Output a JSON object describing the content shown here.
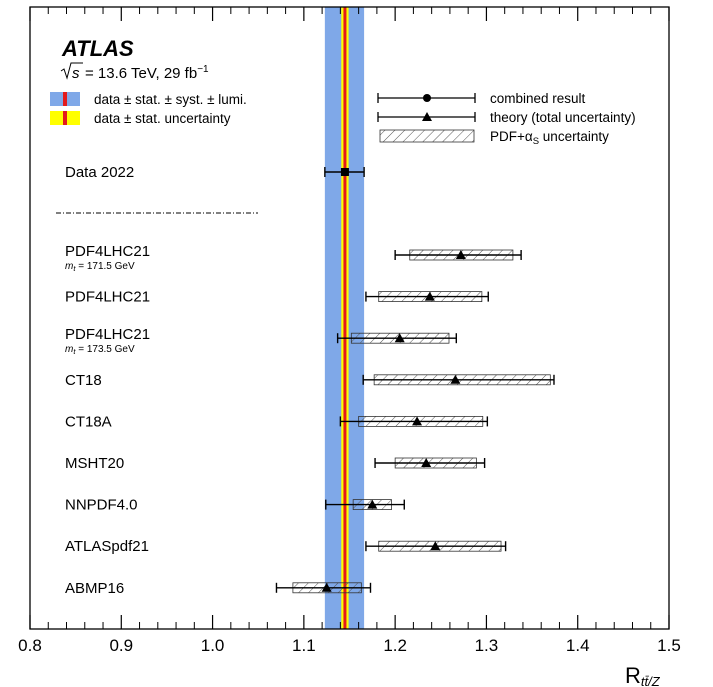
{
  "chart_data": {
    "type": "forest",
    "experiment": "ATLAS",
    "energy_text": "= 13.6 TeV, 29 fb",
    "energy_prefix": "s",
    "lumi_exponent": "−1",
    "xlabel_main": "R",
    "xlabel_sub": "tt̄/Z",
    "xlim": [
      0.8,
      1.5
    ],
    "x_ticks": [
      0.8,
      0.9,
      1.0,
      1.1,
      1.2,
      1.3,
      1.4,
      1.5
    ],
    "x_tick_labels": [
      "0.8",
      "0.9",
      "1.0",
      "1.1",
      "1.2",
      "1.3",
      "1.4",
      "1.5"
    ],
    "data_band": {
      "central": 1.145,
      "total_low": 1.123,
      "total_high": 1.166,
      "stat_low": 1.141,
      "stat_high": 1.149,
      "colors": {
        "total": "#7fa8e8",
        "stat": "#ffff00",
        "central": "#e31a1c"
      }
    },
    "legend_left": [
      {
        "key": "total",
        "label": "data ± stat. ± syst. ± lumi."
      },
      {
        "key": "stat",
        "label": "data ± stat. uncertainty"
      }
    ],
    "legend_right": [
      {
        "key": "combined",
        "label": "combined result"
      },
      {
        "key": "theory",
        "label": "theory (total uncertainty)"
      },
      {
        "key": "pdf",
        "label": "PDF+α",
        "sub": "S",
        "suffix": " uncertainty"
      }
    ],
    "data_point": {
      "label": "Data 2022",
      "value": 1.145,
      "low": 1.123,
      "high": 1.166
    },
    "predictions": [
      {
        "label": "PDF4LHC21",
        "sublabel": "m_t = 171.5 GeV",
        "value": 1.272,
        "err_low": 1.2,
        "err_high": 1.338,
        "pdf_low": 1.216,
        "pdf_high": 1.329
      },
      {
        "label": "PDF4LHC21",
        "sublabel": "",
        "value": 1.238,
        "err_low": 1.168,
        "err_high": 1.302,
        "pdf_low": 1.182,
        "pdf_high": 1.295
      },
      {
        "label": "PDF4LHC21",
        "sublabel": "m_t = 173.5 GeV",
        "value": 1.205,
        "err_low": 1.137,
        "err_high": 1.267,
        "pdf_low": 1.152,
        "pdf_high": 1.259
      },
      {
        "label": "CT18",
        "sublabel": "",
        "value": 1.266,
        "err_low": 1.165,
        "err_high": 1.374,
        "pdf_low": 1.177,
        "pdf_high": 1.37
      },
      {
        "label": "CT18A",
        "sublabel": "",
        "value": 1.224,
        "err_low": 1.14,
        "err_high": 1.301,
        "pdf_low": 1.16,
        "pdf_high": 1.296
      },
      {
        "label": "MSHT20",
        "sublabel": "",
        "value": 1.234,
        "err_low": 1.178,
        "err_high": 1.298,
        "pdf_low": 1.2,
        "pdf_high": 1.289
      },
      {
        "label": "NNPDF4.0",
        "sublabel": "",
        "value": 1.175,
        "err_low": 1.124,
        "err_high": 1.21,
        "pdf_low": 1.154,
        "pdf_high": 1.196
      },
      {
        "label": "ATLASpdf21",
        "sublabel": "",
        "value": 1.244,
        "err_low": 1.168,
        "err_high": 1.321,
        "pdf_low": 1.182,
        "pdf_high": 1.316
      },
      {
        "label": "ABMP16",
        "sublabel": "",
        "value": 1.125,
        "err_low": 1.07,
        "err_high": 1.173,
        "pdf_low": 1.088,
        "pdf_high": 1.163
      }
    ]
  }
}
